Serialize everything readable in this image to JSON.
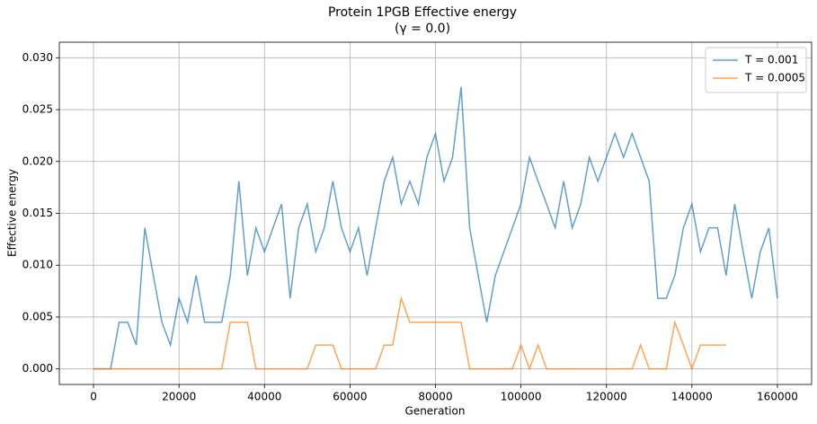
{
  "chart_data": {
    "type": "line",
    "title": "Protein 1PGB Effective energy",
    "subtitle": "(γ = 0.0)",
    "x_label": "Generation",
    "y_label": "Effective energy",
    "xlim": [
      -8000,
      168000
    ],
    "ylim": [
      -0.0015,
      0.0315
    ],
    "xticks": [
      0,
      20000,
      40000,
      60000,
      80000,
      100000,
      120000,
      140000,
      160000
    ],
    "yticks": [
      {
        "value": 0,
        "label": "0.000"
      },
      {
        "value": 0.005,
        "label": "0.005"
      },
      {
        "value": 0.01,
        "label": "0.010"
      },
      {
        "value": 0.015,
        "label": "0.015"
      },
      {
        "value": 0.02,
        "label": "0.020"
      },
      {
        "value": 0.025,
        "label": "0.025"
      },
      {
        "value": 0.03,
        "label": "0.030"
      }
    ],
    "grid": true,
    "legend": "upper right",
    "x": [
      0,
      2000,
      4000,
      6000,
      8000,
      10000,
      12000,
      14000,
      16000,
      18000,
      20000,
      22000,
      24000,
      26000,
      28000,
      30000,
      32000,
      34000,
      36000,
      38000,
      40000,
      42000,
      44000,
      46000,
      48000,
      50000,
      52000,
      54000,
      56000,
      58000,
      60000,
      62000,
      64000,
      66000,
      68000,
      70000,
      72000,
      74000,
      76000,
      78000,
      80000,
      82000,
      84000,
      86000,
      88000,
      90000,
      92000,
      94000,
      96000,
      98000,
      100000,
      102000,
      104000,
      106000,
      108000,
      110000,
      112000,
      114000,
      116000,
      118000,
      120000,
      122000,
      124000,
      126000,
      128000,
      130000,
      132000,
      134000,
      136000,
      138000,
      140000,
      142000,
      144000,
      146000,
      148000,
      150000,
      152000,
      154000,
      156000,
      158000,
      160000
    ],
    "series": [
      {
        "name": "T = 0.001",
        "color": "#1f77b4",
        "values": [
          0,
          0,
          0,
          0.0045,
          0.0045,
          0.0023,
          0.0136,
          0.009,
          0.0045,
          0.0023,
          0.0068,
          0.0045,
          0.009,
          0.0045,
          0.0045,
          0.0045,
          0.009,
          0.0181,
          0.009,
          0.0136,
          0.0113,
          0.0136,
          0.0159,
          0.0068,
          0.0136,
          0.0159,
          0.0113,
          0.0136,
          0.0181,
          0.0136,
          0.0113,
          0.0136,
          0.009,
          0.0136,
          0.0181,
          0.0204,
          0.0159,
          0.0181,
          0.0159,
          0.0204,
          0.0227,
          0.0181,
          0.0204,
          0.0272,
          0.0136,
          0.009,
          0.0045,
          0.009,
          0.0113,
          0.0136,
          0.0159,
          0.0204,
          0.0181,
          0.0159,
          0.0136,
          0.0181,
          0.0136,
          0.0159,
          0.0204,
          0.0181,
          0.0204,
          0.0227,
          0.0204,
          0.0227,
          0.0204,
          0.0181,
          0.0068,
          0.0068,
          0.009,
          0.0136,
          0.0159,
          0.0113,
          0.0136,
          0.0136,
          0.009,
          0.0159,
          0.0113,
          0.0068,
          0.0113,
          0.0136,
          0.0068
        ]
      },
      {
        "name": "T = 0.0005",
        "color": "#ff7f0e",
        "values": [
          0,
          0,
          0,
          0,
          0,
          0,
          0,
          0,
          0,
          0,
          0,
          0,
          0,
          0,
          0,
          0,
          0.0045,
          0.0045,
          0.0045,
          0,
          0,
          0,
          0,
          0,
          0,
          0,
          0.0023,
          0.0023,
          0.0023,
          0,
          0,
          0,
          0,
          0,
          0.0023,
          0.0023,
          0.0068,
          0.0045,
          0.0045,
          0.0045,
          0.0045,
          0.0045,
          0.0045,
          0.0045,
          0,
          0,
          0,
          0,
          0,
          0,
          0.0023,
          0,
          0.0023,
          0,
          0,
          0,
          0,
          0,
          0,
          0,
          0,
          0,
          0,
          0,
          0.0023,
          0,
          0,
          0,
          0.0045,
          0.0023,
          0,
          0.0023,
          0.0023,
          0.0023,
          0.0023,
          null,
          null,
          null,
          null,
          null,
          null
        ]
      }
    ]
  }
}
